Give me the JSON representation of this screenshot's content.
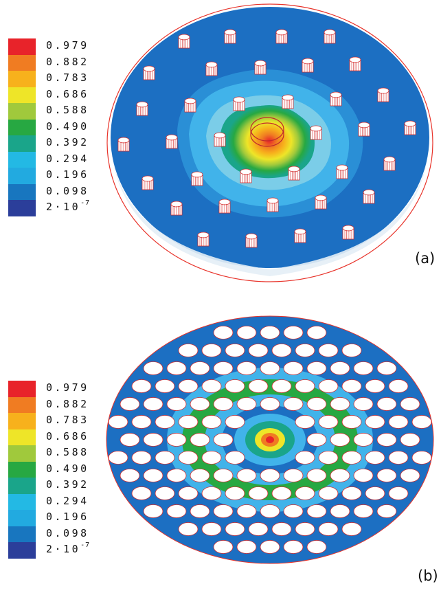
{
  "panels": [
    {
      "tag": "(a)",
      "legend": {
        "colors": [
          "#e8232a",
          "#f07c22",
          "#f7b11c",
          "#eee528",
          "#a0c93c",
          "#27a842",
          "#1aa58a",
          "#23b9e4",
          "#22aae0",
          "#1876bf",
          "#2b3e9a"
        ],
        "labels": [
          "0.979",
          "0.882",
          "0.783",
          "0.686",
          "0.588",
          "0.490",
          "0.392",
          "0.294",
          "0.196",
          "0.098"
        ],
        "min_label": {
          "base": "2·10",
          "exp": "-7"
        }
      }
    },
    {
      "tag": "(b)",
      "legend": {
        "colors": [
          "#e8232a",
          "#f07c22",
          "#f7b11c",
          "#eee528",
          "#a0c93c",
          "#27a842",
          "#1aa58a",
          "#23b9e4",
          "#22aae0",
          "#1876bf",
          "#2b3e9a"
        ],
        "labels": [
          "0.979",
          "0.882",
          "0.783",
          "0.686",
          "0.588",
          "0.490",
          "0.392",
          "0.294",
          "0.196",
          "0.098"
        ],
        "min_label": {
          "base": "2·10",
          "exp": "-7"
        }
      }
    }
  ]
}
